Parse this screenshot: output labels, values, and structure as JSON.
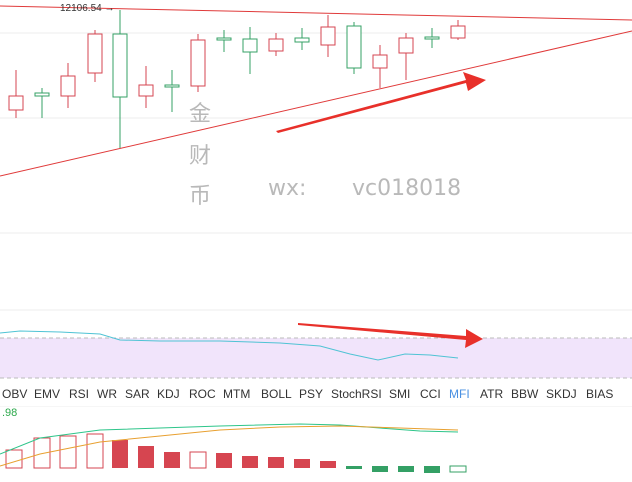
{
  "price_high_label": "12106.54",
  "watermark": {
    "line1": "金",
    "line2": "财",
    "line3": "币",
    "wx": "wx:",
    "id": "vc018018"
  },
  "indicator_tabs": [
    "OBV",
    "EMV",
    "RSI",
    "WR",
    "SAR",
    "KDJ",
    "ROC",
    "MTM",
    "BOLL",
    "PSY",
    "StochRSI",
    "SMI",
    "CCI",
    "MFI",
    "ATR",
    "BBW",
    "SKDJ",
    "BIAS"
  ],
  "active_tab": "MFI",
  "lower_value_label": ".98",
  "colors": {
    "up": "#d64550",
    "down": "#34a065",
    "trendline": "#e03a3a",
    "band": "#f1e4fb",
    "mfi_line": "#4fc3d4",
    "active_tab": "#4a90e2"
  }
}
